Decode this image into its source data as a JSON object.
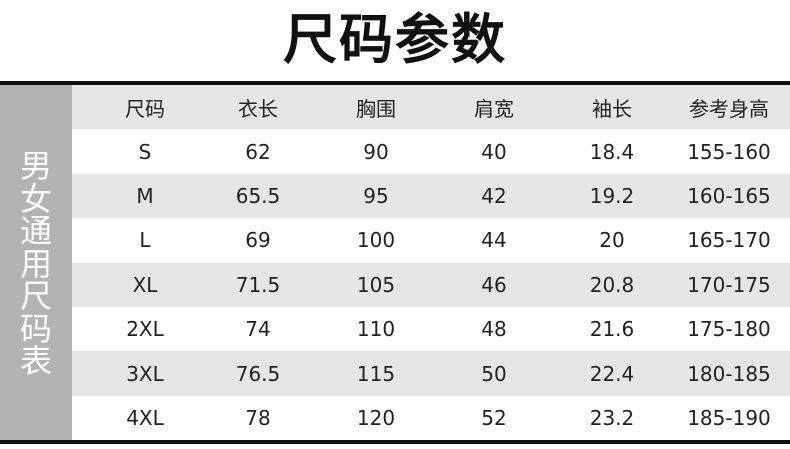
{
  "title": "尺码参数",
  "side_label": [
    "男",
    "女",
    "通",
    "用",
    "尺",
    "码",
    "表"
  ],
  "headers": [
    "尺码",
    "衣长",
    "胸围",
    "肩宽",
    "袖长",
    "参考身高"
  ],
  "rows": [
    [
      "S",
      "62",
      "90",
      "40",
      "18.4",
      "155-160"
    ],
    [
      "M",
      "65.5",
      "95",
      "42",
      "19.2",
      "160-165"
    ],
    [
      "L",
      "69",
      "100",
      "44",
      "20",
      "165-170"
    ],
    [
      "XL",
      "71.5",
      "105",
      "46",
      "20.8",
      "170-175"
    ],
    [
      "2XL",
      "74",
      "110",
      "48",
      "21.6",
      "175-180"
    ],
    [
      "3XL",
      "76.5",
      "115",
      "50",
      "22.4",
      "180-185"
    ],
    [
      "4XL",
      "78",
      "120",
      "52",
      "23.2",
      "185-190"
    ]
  ],
  "colors": {
    "side": "#b3b3b3",
    "alt_row": "#e6e6e6",
    "rule": "#111111"
  }
}
